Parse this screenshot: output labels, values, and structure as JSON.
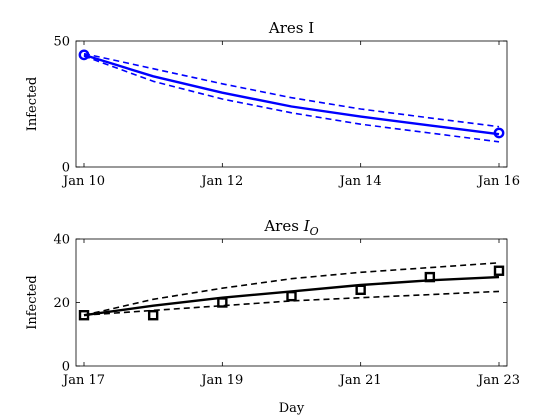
{
  "chart_data": [
    {
      "type": "line",
      "title": "Ares I",
      "ylabel": "Infected",
      "xlabel": "",
      "color": "#0000ff",
      "ylim": [
        0,
        50
      ],
      "yticks": [
        "0",
        "50"
      ],
      "xticks": [
        "Jan 10",
        "Jan 12",
        "Jan 14",
        "Jan 16"
      ],
      "xlim": [
        "Jan 10",
        "Jan 16"
      ],
      "series": [
        {
          "role": "fit",
          "x": [
            "Jan 10",
            "Jan 11",
            "Jan 12",
            "Jan 13",
            "Jan 14",
            "Jan 15",
            "Jan 16"
          ],
          "y": [
            44.5,
            36,
            29.5,
            24,
            20,
            16.5,
            13
          ]
        },
        {
          "role": "upper-bound",
          "x": [
            "Jan 10",
            "Jan 11",
            "Jan 12",
            "Jan 13",
            "Jan 14",
            "Jan 15",
            "Jan 16"
          ],
          "y": [
            45,
            39,
            33,
            27.5,
            23,
            19.5,
            16
          ]
        },
        {
          "role": "lower-bound",
          "x": [
            "Jan 10",
            "Jan 11",
            "Jan 12",
            "Jan 13",
            "Jan 14",
            "Jan 15",
            "Jan 16"
          ],
          "y": [
            44,
            34,
            27,
            21.5,
            17,
            13.5,
            10
          ]
        },
        {
          "role": "observed",
          "x": [
            "Jan 10",
            "Jan 16"
          ],
          "y": [
            44.5,
            13.5
          ]
        }
      ]
    },
    {
      "type": "line",
      "title": "Ares I_O",
      "ylabel": "Infected",
      "xlabel": "Day",
      "color": "#000000",
      "ylim": [
        0,
        40
      ],
      "yticks": [
        "0",
        "20",
        "40"
      ],
      "xticks": [
        "Jan 17",
        "Jan 19",
        "Jan 21",
        "Jan 23"
      ],
      "xlim": [
        "Jan 17",
        "Jan 23"
      ],
      "series": [
        {
          "role": "fit",
          "x": [
            "Jan 17",
            "Jan 18",
            "Jan 19",
            "Jan 20",
            "Jan 21",
            "Jan 22",
            "Jan 23"
          ],
          "y": [
            16,
            19,
            21.5,
            23.5,
            25.5,
            27,
            28
          ]
        },
        {
          "role": "upper-bound",
          "x": [
            "Jan 17",
            "Jan 18",
            "Jan 19",
            "Jan 20",
            "Jan 21",
            "Jan 22",
            "Jan 23"
          ],
          "y": [
            16,
            21,
            24.5,
            27.5,
            29.5,
            31,
            32.5
          ]
        },
        {
          "role": "lower-bound",
          "x": [
            "Jan 17",
            "Jan 18",
            "Jan 19",
            "Jan 20",
            "Jan 21",
            "Jan 22",
            "Jan 23"
          ],
          "y": [
            16,
            17.5,
            19,
            20.5,
            21.5,
            22.5,
            23.5
          ]
        },
        {
          "role": "observed",
          "x": [
            "Jan 17",
            "Jan 18",
            "Jan 19",
            "Jan 20",
            "Jan 21",
            "Jan 22",
            "Jan 23"
          ],
          "y": [
            16,
            16,
            20,
            22,
            24,
            28,
            30
          ]
        }
      ]
    }
  ]
}
